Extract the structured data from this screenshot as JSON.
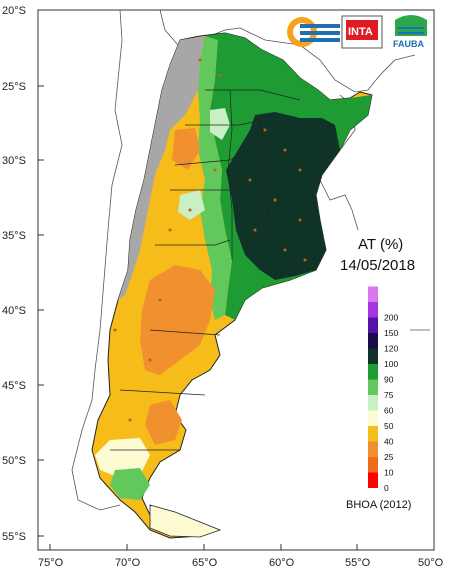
{
  "map": {
    "lat_labels": [
      "20°S",
      "25°S",
      "30°S",
      "35°S",
      "40°S",
      "45°S",
      "50°S",
      "55°S"
    ],
    "lon_labels": [
      "75°O",
      "70°O",
      "65°O",
      "60°O",
      "55°O",
      "50°O"
    ],
    "legend": {
      "title": "AT (%)",
      "date": "14/05/2018",
      "source": "BHOA (2012)",
      "classes": [
        {
          "label": "0",
          "color": "#ff0000"
        },
        {
          "label": "10",
          "color": "#ee6a1c"
        },
        {
          "label": "25",
          "color": "#f0902e"
        },
        {
          "label": "40",
          "color": "#f6bc1a"
        },
        {
          "label": "50",
          "color": "#fdfbd2"
        },
        {
          "label": "60",
          "color": "#c9f0c5"
        },
        {
          "label": "75",
          "color": "#62c85c"
        },
        {
          "label": "90",
          "color": "#1f9b34"
        },
        {
          "label": "100",
          "color": "#0f3327"
        },
        {
          "label": "120",
          "color": "#1a0d4a"
        },
        {
          "label": "150",
          "color": "#5512a8"
        },
        {
          "label": "200",
          "color": "#a536e0"
        },
        {
          "label": "",
          "color": "#d877f0"
        }
      ]
    },
    "logos": {
      "inta": "INTA",
      "fauba": "FAUBA"
    }
  }
}
